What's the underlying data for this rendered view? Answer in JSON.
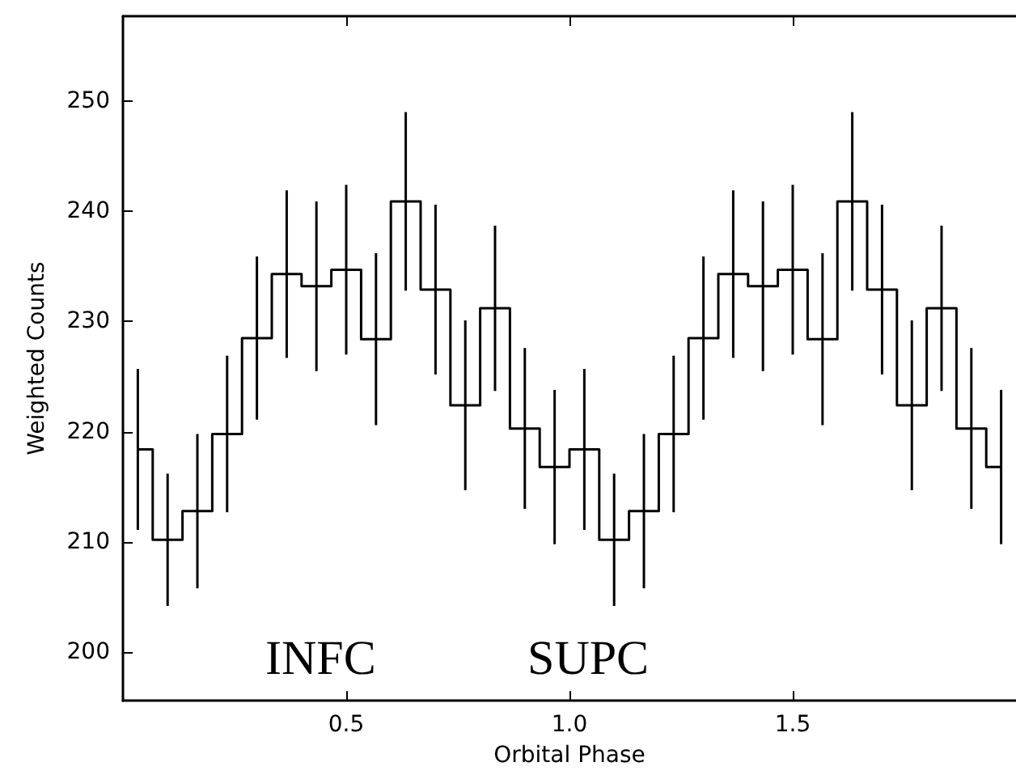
{
  "chart_data": {
    "type": "step",
    "xlabel": "Orbital Phase",
    "ylabel": "Weighted Counts",
    "x": [
      0.0333,
      0.1,
      0.1667,
      0.2333,
      0.3,
      0.3667,
      0.4333,
      0.5,
      0.5667,
      0.6333,
      0.7,
      0.7667,
      0.8333,
      0.9,
      0.9667,
      1.0333,
      1.1,
      1.1667,
      1.2333,
      1.3,
      1.3667,
      1.4333,
      1.5,
      1.5667,
      1.6333,
      1.7,
      1.7667,
      1.8333,
      1.9,
      1.9667
    ],
    "values": [
      218.4,
      210.2,
      212.8,
      219.8,
      228.5,
      234.3,
      233.2,
      234.7,
      228.4,
      240.9,
      232.9,
      222.4,
      231.2,
      220.3,
      216.8,
      218.4,
      210.2,
      212.8,
      219.8,
      228.5,
      234.3,
      233.2,
      234.7,
      228.4,
      240.9,
      232.9,
      222.4,
      231.2,
      220.3,
      216.8
    ],
    "errors": [
      7.3,
      6,
      7,
      7.1,
      7.4,
      7.6,
      7.7,
      7.7,
      7.8,
      8.1,
      7.7,
      7.7,
      7.5,
      7.3,
      7,
      7.3,
      6,
      7,
      7.1,
      7.4,
      7.6,
      7.7,
      7.7,
      7.8,
      8.1,
      7.7,
      7.7,
      7.5,
      7.3,
      7
    ],
    "color": "#000000",
    "xlim": [
      0,
      2.0
    ],
    "xticks": [
      0.5,
      {
        "value": 1,
        "label": "1.0"
      },
      1.5
    ],
    "ylim": [
      195.6,
      257.7
    ],
    "yticks": [
      200,
      210,
      220,
      230,
      240,
      250
    ],
    "annotations": [
      "INFC",
      "SUPC"
    ],
    "grid": false,
    "marker": "none"
  }
}
